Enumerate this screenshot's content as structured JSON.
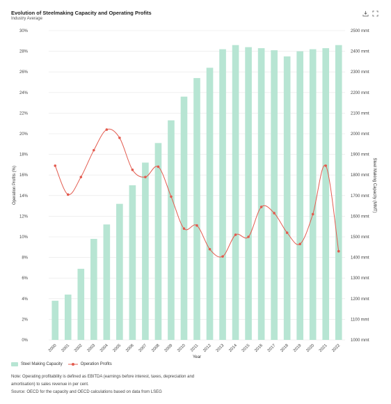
{
  "header": {
    "title": "Evolution of Steelmaking Capacity and Operating Profits",
    "subtitle": "Industry Average"
  },
  "toolbar": {
    "icons": [
      "download-icon",
      "fullscreen-icon"
    ]
  },
  "colors": {
    "bar": "#b7e5d3",
    "line": "#e35b4f",
    "grid": "#e6e6e6",
    "axis_text": "#444444"
  },
  "chart_data": {
    "type": "bar+line",
    "categories": [
      "2000",
      "2001",
      "2002",
      "2003",
      "2004",
      "2005",
      "2006",
      "2007",
      "2008",
      "2009",
      "2010",
      "2011",
      "2012",
      "2013",
      "2014",
      "2015",
      "2016",
      "2017",
      "2018",
      "2019",
      "2020",
      "2021",
      "2022"
    ],
    "series": [
      {
        "name": "Steel Making Capacity",
        "type": "bar",
        "axis": "right",
        "values": [
          1190,
          1220,
          1345,
          1490,
          1560,
          1660,
          1750,
          1860,
          1955,
          2065,
          2180,
          2270,
          2320,
          2410,
          2430,
          2420,
          2415,
          2405,
          2375,
          2400,
          2410,
          2415,
          2430
        ]
      },
      {
        "name": "Operation Profits",
        "type": "line",
        "axis": "left",
        "values": [
          16.9,
          14.1,
          15.8,
          18.4,
          20.4,
          19.6,
          16.5,
          15.8,
          16.8,
          13.9,
          10.8,
          11.1,
          8.8,
          8.1,
          10.2,
          10.0,
          12.9,
          12.3,
          10.4,
          9.3,
          12.2,
          16.9,
          8.6
        ]
      }
    ],
    "xlabel": "Year",
    "ylabel_left": "Operation Profits (%)",
    "ylabel_right": "Steel Making Capacity (MMT)",
    "ylim_left": [
      0,
      30
    ],
    "ylim_right": [
      1000,
      2500
    ],
    "left_ticks": [
      "0%",
      "2%",
      "4%",
      "6%",
      "8%",
      "10%",
      "12%",
      "14%",
      "16%",
      "18%",
      "20%",
      "22%",
      "24%",
      "26%",
      "28%",
      "30%"
    ],
    "right_ticks": [
      "1000 mmt",
      "1100 mmt",
      "1200 mmt",
      "1300 mmt",
      "1400 mmt",
      "1500 mmt",
      "1600 mmt",
      "1700 mmt",
      "1800 mmt",
      "1900 mmt",
      "2000 mmt",
      "2100 mmt",
      "2200 mmt",
      "2300 mmt",
      "2400 mmt",
      "2500 mmt"
    ],
    "grid": true,
    "legend_position": "bottom-left"
  },
  "legend": {
    "bar_label": "Steel Making Capacity",
    "line_label": "Operation Profits"
  },
  "notes": {
    "line1": "Note: Operating profitability is defined as EBITDA (earnings before interest, taxes, depreciation and",
    "line2": "amortisation) to sales revenue in per cent.",
    "line3": "Source: OECD for the capacity and OECD calculations based on data from LSEG"
  }
}
